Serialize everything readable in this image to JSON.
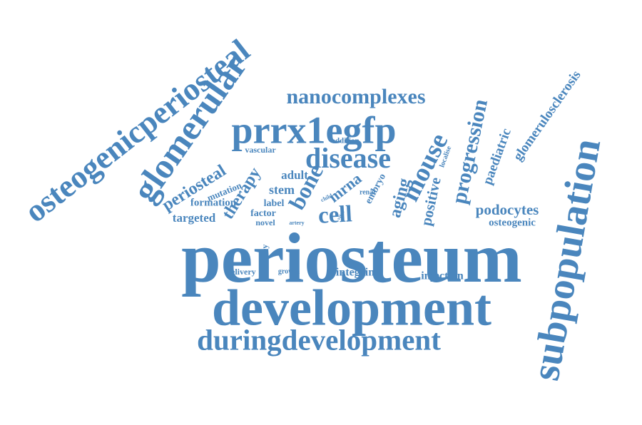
{
  "color": "#4a86bd",
  "words": [
    "periosteum",
    "development",
    "duringdevelopment",
    "subpopulation",
    "osteogenicperiosteal",
    "glomerular",
    "prrx1egfp",
    "nanocomplexes",
    "disease",
    "mouse",
    "progression",
    "glomerulosclerosis",
    "cell",
    "bone",
    "periosteal",
    "therapy",
    "stem",
    "adult",
    "aging",
    "positive",
    "paediatric",
    "podocytes",
    "osteogenic",
    "targeted",
    "formation",
    "mutation",
    "vascular",
    "addition",
    "label",
    "factor",
    "novel",
    "mrna",
    "embryo",
    "integrin",
    "injection",
    "delivery",
    "kidney",
    "growth",
    "artery",
    "child",
    "vitro",
    "renal",
    "localise"
  ]
}
